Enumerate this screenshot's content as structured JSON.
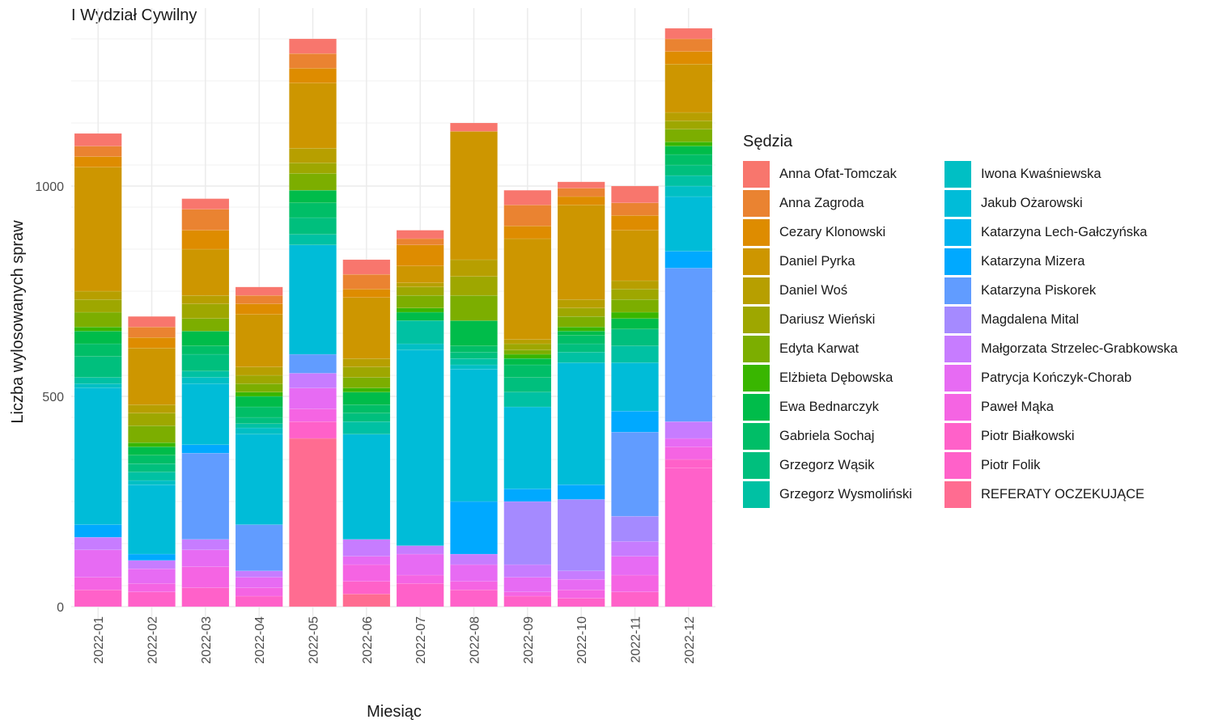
{
  "chart_data": {
    "type": "bar",
    "stacked": true,
    "title": "I Wydział Cywilny",
    "xlabel": "Miesiąc",
    "ylabel": "Liczba wylosowanych spraw",
    "ylim": [
      0,
      1420
    ],
    "yticks": [
      0,
      500,
      1000
    ],
    "grid": true,
    "legend_title": "Sędzia",
    "legend_position": "right",
    "categories": [
      "2022-01",
      "2022-02",
      "2022-03",
      "2022-04",
      "2022-05",
      "2022-06",
      "2022-07",
      "2022-08",
      "2022-09",
      "2022-10",
      "2022-11",
      "2022-12"
    ],
    "series": [
      {
        "name": "REFERATY OCZEKUJĄCE",
        "color": "#FF6C91",
        "values": [
          0,
          0,
          0,
          0,
          400,
          30,
          0,
          0,
          0,
          0,
          0,
          0
        ]
      },
      {
        "name": "Piotr Folik",
        "color": "#FF61C9",
        "values": [
          40,
          35,
          45,
          25,
          40,
          30,
          55,
          40,
          25,
          20,
          35,
          330
        ]
      },
      {
        "name": "Piotr Białkowski",
        "color": "#FF61C9",
        "values": [
          0,
          0,
          0,
          0,
          0,
          0,
          0,
          0,
          0,
          0,
          0,
          20
        ]
      },
      {
        "name": "Paweł Mąka",
        "color": "#F564E3",
        "values": [
          30,
          20,
          50,
          20,
          30,
          40,
          20,
          20,
          10,
          20,
          40,
          30
        ]
      },
      {
        "name": "Patrycja Kończyk-Chorab",
        "color": "#E76BF3",
        "values": [
          65,
          35,
          40,
          25,
          50,
          20,
          50,
          40,
          35,
          25,
          45,
          20
        ]
      },
      {
        "name": "Małgorzata Strzelec-Grabkowska",
        "color": "#C77CFF",
        "values": [
          30,
          20,
          25,
          15,
          35,
          40,
          20,
          25,
          30,
          20,
          35,
          40
        ]
      },
      {
        "name": "Magdalena Mital",
        "color": "#A58AFF",
        "values": [
          0,
          0,
          0,
          0,
          0,
          0,
          0,
          0,
          150,
          170,
          60,
          0
        ]
      },
      {
        "name": "Katarzyna Piskorek",
        "color": "#619CFF",
        "values": [
          0,
          0,
          205,
          110,
          45,
          0,
          0,
          0,
          0,
          0,
          200,
          365
        ]
      },
      {
        "name": "Katarzyna Mizera",
        "color": "#00A9FF",
        "values": [
          30,
          15,
          20,
          0,
          0,
          0,
          0,
          125,
          30,
          35,
          50,
          40
        ]
      },
      {
        "name": "Katarzyna Lech-Gałczyńska",
        "color": "#00B4EF",
        "values": [
          0,
          0,
          0,
          0,
          0,
          0,
          0,
          0,
          0,
          0,
          0,
          0
        ]
      },
      {
        "name": "Jakub Ożarowski",
        "color": "#00BCD8",
        "values": [
          325,
          165,
          145,
          215,
          260,
          250,
          465,
          315,
          195,
          290,
          115,
          130
        ]
      },
      {
        "name": "Iwona Kwaśniewska",
        "color": "#00BFC4",
        "values": [
          10,
          10,
          15,
          15,
          0,
          0,
          15,
          10,
          0,
          0,
          0,
          25
        ]
      },
      {
        "name": "Grzegorz Wysmoliński",
        "color": "#00C1A3",
        "values": [
          15,
          20,
          15,
          10,
          25,
          30,
          55,
          15,
          35,
          25,
          40,
          25
        ]
      },
      {
        "name": "Grzegorz Wąsik",
        "color": "#00BF7D",
        "values": [
          50,
          20,
          40,
          15,
          40,
          20,
          0,
          15,
          35,
          20,
          40,
          25
        ]
      },
      {
        "name": "Gabriela Sochaj",
        "color": "#00BE67",
        "values": [
          30,
          20,
          20,
          25,
          35,
          20,
          0,
          15,
          30,
          20,
          0,
          25
        ]
      },
      {
        "name": "Ewa Bednarczyk",
        "color": "#00BC4A",
        "values": [
          30,
          20,
          35,
          25,
          30,
          30,
          20,
          60,
          15,
          10,
          25,
          20
        ]
      },
      {
        "name": "Elżbieta Dębowska",
        "color": "#39B600",
        "values": [
          10,
          10,
          0,
          10,
          0,
          10,
          10,
          0,
          10,
          10,
          15,
          10
        ]
      },
      {
        "name": "Edyta Karwat",
        "color": "#7CAE00",
        "values": [
          35,
          40,
          30,
          20,
          40,
          25,
          30,
          60,
          10,
          25,
          30,
          30
        ]
      },
      {
        "name": "Dariusz Wieński",
        "color": "#9EA700",
        "values": [
          30,
          30,
          35,
          20,
          25,
          25,
          20,
          45,
          15,
          20,
          25,
          20
        ]
      },
      {
        "name": "Daniel Woś",
        "color": "#B79F00",
        "values": [
          20,
          20,
          20,
          20,
          35,
          20,
          10,
          40,
          10,
          20,
          20,
          20
        ]
      },
      {
        "name": "Daniel Pyrka",
        "color": "#CD9600",
        "values": [
          295,
          135,
          110,
          125,
          155,
          145,
          40,
          305,
          240,
          225,
          120,
          115
        ]
      },
      {
        "name": "Cezary Klonowski",
        "color": "#DE8C00",
        "values": [
          25,
          25,
          45,
          25,
          35,
          20,
          50,
          0,
          30,
          20,
          35,
          30
        ]
      },
      {
        "name": "Anna Zagroda",
        "color": "#EA8331",
        "values": [
          25,
          25,
          50,
          20,
          35,
          35,
          15,
          0,
          50,
          20,
          30,
          30
        ]
      },
      {
        "name": "Anna Ofat-Tomczak",
        "color": "#F8766D",
        "values": [
          30,
          25,
          25,
          20,
          35,
          35,
          20,
          20,
          35,
          15,
          40,
          25
        ]
      }
    ]
  },
  "legend": {
    "title": "Sędzia",
    "col1": [
      {
        "label": "Anna Ofat-Tomczak",
        "color": "#F8766D"
      },
      {
        "label": "Anna Zagroda",
        "color": "#EA8331"
      },
      {
        "label": "Cezary Klonowski",
        "color": "#DE8C00"
      },
      {
        "label": "Daniel Pyrka",
        "color": "#CD9600"
      },
      {
        "label": "Daniel Woś",
        "color": "#B79F00"
      },
      {
        "label": "Dariusz Wieński",
        "color": "#9EA700"
      },
      {
        "label": "Edyta Karwat",
        "color": "#7CAE00"
      },
      {
        "label": "Elżbieta Dębowska",
        "color": "#39B600"
      },
      {
        "label": "Ewa Bednarczyk",
        "color": "#00BC4A"
      },
      {
        "label": "Gabriela Sochaj",
        "color": "#00BE67"
      },
      {
        "label": "Grzegorz Wąsik",
        "color": "#00BF7D"
      },
      {
        "label": "Grzegorz Wysmoliński",
        "color": "#00C1A3"
      }
    ],
    "col2": [
      {
        "label": "Iwona Kwaśniewska",
        "color": "#00BFC4"
      },
      {
        "label": "Jakub Ożarowski",
        "color": "#00BCD8"
      },
      {
        "label": "Katarzyna Lech-Gałczyńska",
        "color": "#00B4EF"
      },
      {
        "label": "Katarzyna Mizera",
        "color": "#00A9FF"
      },
      {
        "label": "Katarzyna Piskorek",
        "color": "#619CFF"
      },
      {
        "label": "Magdalena Mital",
        "color": "#A58AFF"
      },
      {
        "label": "Małgorzata Strzelec-Grabkowska",
        "color": "#C77CFF"
      },
      {
        "label": "Patrycja Kończyk-Chorab",
        "color": "#E76BF3"
      },
      {
        "label": "Paweł Mąka",
        "color": "#F564E3"
      },
      {
        "label": "Piotr Białkowski",
        "color": "#FF61C9"
      },
      {
        "label": "Piotr Folik",
        "color": "#FF61C9"
      },
      {
        "label": "REFERATY OCZEKUJĄCE",
        "color": "#FF6C91"
      }
    ]
  }
}
